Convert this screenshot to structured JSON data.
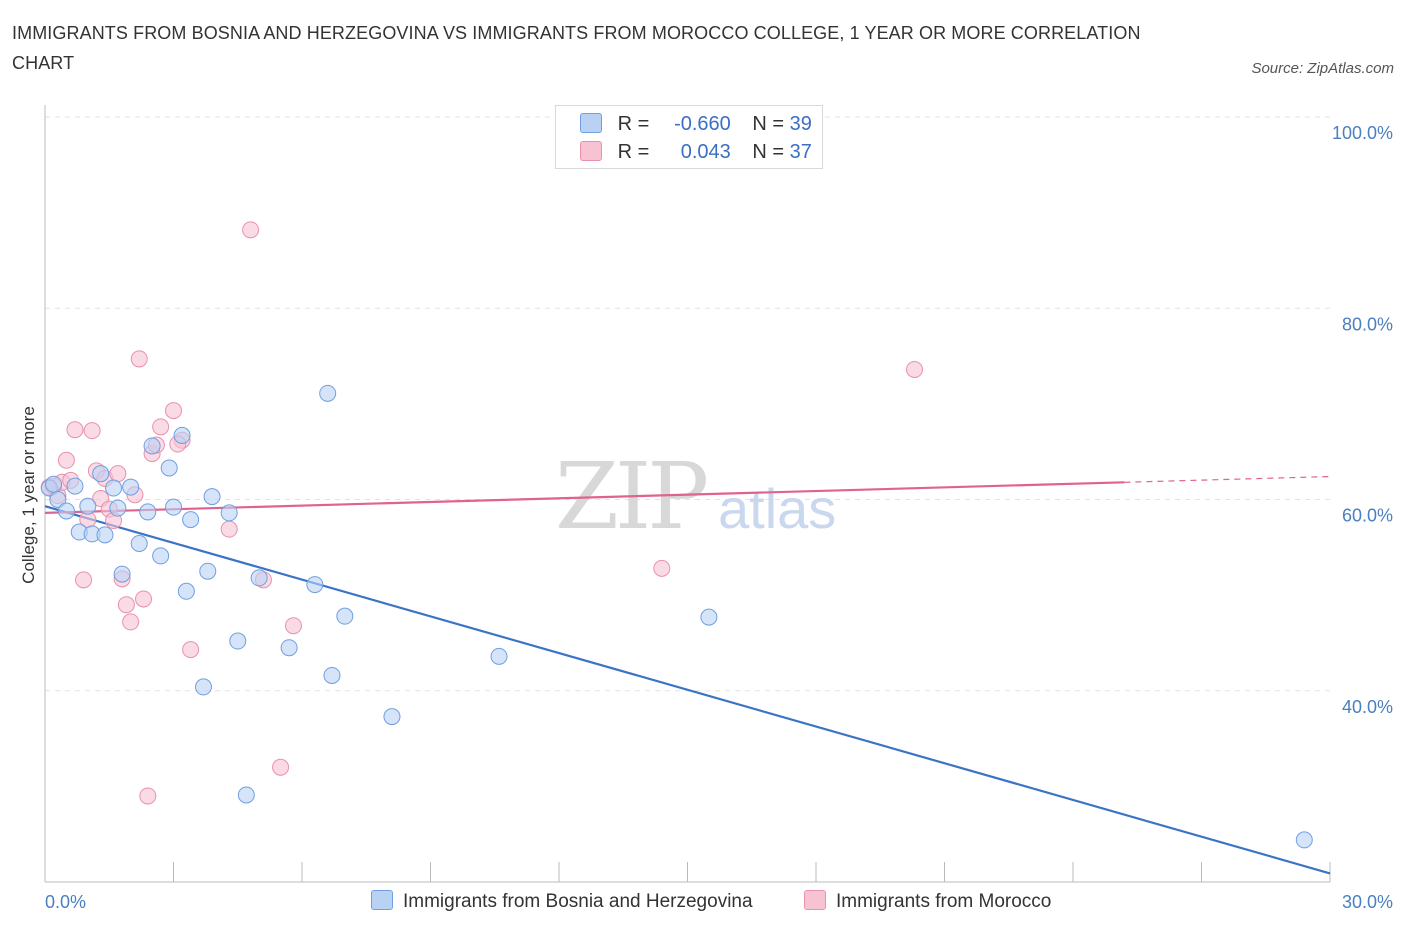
{
  "title": "IMMIGRANTS FROM BOSNIA AND HERZEGOVINA VS IMMIGRANTS FROM MOROCCO COLLEGE, 1 YEAR OR MORE CORRELATION CHART",
  "source": "Source: ZipAtlas.com",
  "watermark": {
    "zip": "ZIP",
    "atlas": "atlas"
  },
  "legend": {
    "bosnia": {
      "r_label": "R =",
      "r_value": "-0.660",
      "n_label": "N =",
      "n_value": "39"
    },
    "morocco": {
      "r_label": "R =",
      "r_value": "0.043",
      "n_label": "N =",
      "n_value": "37"
    }
  },
  "colors": {
    "bosnia_fill": "#b9d2f3",
    "bosnia_stroke": "#6f9fe0",
    "bosnia_line": "#3a74c9",
    "morocco_fill": "#f7c3d3",
    "morocco_stroke": "#e891ad",
    "morocco_line": "#e0628e",
    "axis_text": "#4a7fc1",
    "grid": "#e2e2e2"
  },
  "chart_data": {
    "type": "scatter",
    "title": "IMMIGRANTS FROM BOSNIA AND HERZEGOVINA VS IMMIGRANTS FROM MOROCCO COLLEGE, 1 YEAR OR MORE CORRELATION CHART",
    "xlabel": "",
    "ylabel": "College, 1 year or more",
    "xlim": [
      0,
      30
    ],
    "ylim": [
      20,
      100
    ],
    "x_tick_labels": [
      "0.0%",
      "30.0%"
    ],
    "y_ticks": [
      40,
      60,
      80,
      100
    ],
    "y_tick_labels": [
      "40.0%",
      "60.0%",
      "80.0%",
      "100.0%"
    ],
    "grid": true,
    "series": [
      {
        "name": "Immigrants from Bosnia and Herzegovina",
        "color": "#6f9fe0",
        "points": [
          [
            0.1,
            61.2
          ],
          [
            0.3,
            60.0
          ],
          [
            0.5,
            58.8
          ],
          [
            0.7,
            61.4
          ],
          [
            0.8,
            56.6
          ],
          [
            1.0,
            59.3
          ],
          [
            1.1,
            56.4
          ],
          [
            1.4,
            56.3
          ],
          [
            1.3,
            62.7
          ],
          [
            1.6,
            61.2
          ],
          [
            1.7,
            59.1
          ],
          [
            1.8,
            52.2
          ],
          [
            2.0,
            61.3
          ],
          [
            2.2,
            55.4
          ],
          [
            2.4,
            58.7
          ],
          [
            2.5,
            65.6
          ],
          [
            2.7,
            54.1
          ],
          [
            2.9,
            63.3
          ],
          [
            3.0,
            59.2
          ],
          [
            3.2,
            66.7
          ],
          [
            3.3,
            50.4
          ],
          [
            3.4,
            57.9
          ],
          [
            3.7,
            40.4
          ],
          [
            3.8,
            52.5
          ],
          [
            3.9,
            60.3
          ],
          [
            4.3,
            58.6
          ],
          [
            4.5,
            45.2
          ],
          [
            4.7,
            29.1
          ],
          [
            5.0,
            51.8
          ],
          [
            5.7,
            44.5
          ],
          [
            6.3,
            51.1
          ],
          [
            6.6,
            71.1
          ],
          [
            6.7,
            41.6
          ],
          [
            7.0,
            47.8
          ],
          [
            8.1,
            37.3
          ],
          [
            10.6,
            43.6
          ],
          [
            15.5,
            47.7
          ],
          [
            29.4,
            24.4
          ],
          [
            0.2,
            61.6
          ]
        ]
      },
      {
        "name": "Immigrants from Morocco",
        "color": "#e891ad",
        "points": [
          [
            0.1,
            61.3
          ],
          [
            0.2,
            61.4
          ],
          [
            0.3,
            60.4
          ],
          [
            0.4,
            61.8
          ],
          [
            0.5,
            64.1
          ],
          [
            0.6,
            62.0
          ],
          [
            0.7,
            67.3
          ],
          [
            0.9,
            51.6
          ],
          [
            1.0,
            57.9
          ],
          [
            1.1,
            67.2
          ],
          [
            1.2,
            63.0
          ],
          [
            1.3,
            60.1
          ],
          [
            1.4,
            62.2
          ],
          [
            1.5,
            59.0
          ],
          [
            1.6,
            57.8
          ],
          [
            1.7,
            62.7
          ],
          [
            1.8,
            51.7
          ],
          [
            1.9,
            49.0
          ],
          [
            2.0,
            47.2
          ],
          [
            2.1,
            60.5
          ],
          [
            2.2,
            74.7
          ],
          [
            2.3,
            49.6
          ],
          [
            2.4,
            29.0
          ],
          [
            2.5,
            64.8
          ],
          [
            2.6,
            65.7
          ],
          [
            2.7,
            67.6
          ],
          [
            3.0,
            69.3
          ],
          [
            3.2,
            66.2
          ],
          [
            3.4,
            44.3
          ],
          [
            4.3,
            56.9
          ],
          [
            4.8,
            88.2
          ],
          [
            5.1,
            51.6
          ],
          [
            5.5,
            32.0
          ],
          [
            5.8,
            46.8
          ],
          [
            14.4,
            52.8
          ],
          [
            20.3,
            73.6
          ],
          [
            3.1,
            65.8
          ]
        ]
      }
    ],
    "trend_lines": [
      {
        "series": "Immigrants from Bosnia and Herzegovina",
        "x": [
          0,
          30
        ],
        "y": [
          59.3,
          20.9
        ],
        "style": "solid"
      },
      {
        "series": "Immigrants from Morocco",
        "x": [
          0,
          25.2
        ],
        "y": [
          58.6,
          61.8
        ],
        "style": "solid"
      },
      {
        "series": "Immigrants from Morocco",
        "x": [
          25.2,
          30
        ],
        "y": [
          61.8,
          62.4
        ],
        "style": "dashed"
      }
    ]
  },
  "bottom_legend": {
    "bosnia": "Immigrants from Bosnia and Herzegovina",
    "morocco": "Immigrants from Morocco"
  }
}
